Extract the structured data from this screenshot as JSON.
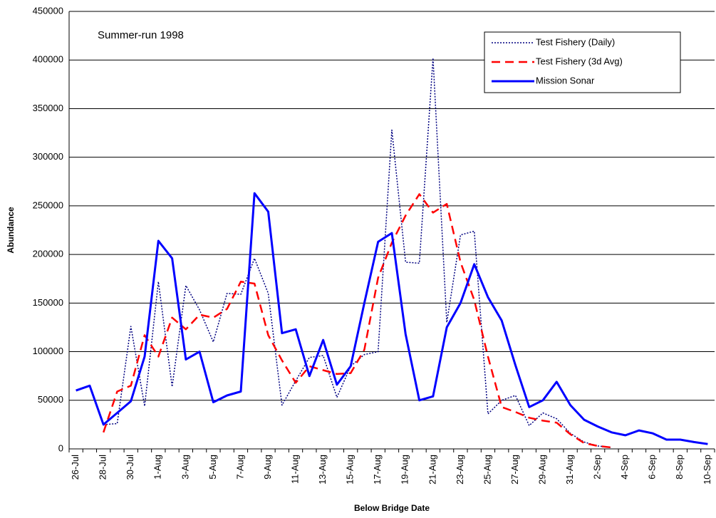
{
  "chart_data": {
    "type": "line",
    "annotation": "Summer-run 1998",
    "x_label": "Below Bridge Date",
    "y_label": "Abundance",
    "categories": [
      "26-Jul",
      null,
      "28-Jul",
      null,
      "30-Jul",
      null,
      "1-Aug",
      null,
      "3-Aug",
      null,
      "5-Aug",
      null,
      "7-Aug",
      null,
      "9-Aug",
      null,
      "11-Aug",
      null,
      "13-Aug",
      null,
      "15-Aug",
      null,
      "17-Aug",
      null,
      "19-Aug",
      null,
      "21-Aug",
      null,
      "23-Aug",
      null,
      "25-Aug",
      null,
      "27-Aug",
      null,
      "29-Aug",
      null,
      "31-Aug",
      null,
      "2-Sep",
      null,
      "4-Sep",
      null,
      "6-Sep",
      null,
      "8-Sep",
      null,
      "10-Sep"
    ],
    "series": [
      {
        "name": "Test Fishery (Daily)",
        "color": "#000080",
        "dash": "dotted",
        "values": [
          null,
          null,
          25000,
          26000,
          126000,
          44000,
          172000,
          64000,
          168000,
          143000,
          110000,
          160000,
          159000,
          196000,
          160000,
          45000,
          70000,
          94000,
          96000,
          53000,
          85000,
          97000,
          100000,
          328000,
          192000,
          191000,
          402000,
          130000,
          220000,
          224000,
          36000,
          50000,
          55000,
          24000,
          37000,
          31000,
          16000,
          7000,
          3000,
          1500,
          null,
          null,
          null,
          null,
          null,
          null,
          null
        ]
      },
      {
        "name": "Test Fishery (3d Avg)",
        "color": "#ff0000",
        "dash": "dashed",
        "values": [
          null,
          null,
          17000,
          59000,
          65000,
          117000,
          95000,
          135000,
          123000,
          138000,
          135000,
          144000,
          172000,
          170000,
          117000,
          91000,
          68000,
          85000,
          81000,
          77000,
          78000,
          102000,
          176000,
          212000,
          240000,
          262000,
          243000,
          252000,
          192000,
          153000,
          95000,
          43000,
          38000,
          32000,
          29000,
          27000,
          15000,
          6000,
          3000,
          1500,
          null,
          null,
          null,
          null,
          null,
          null,
          null
        ]
      },
      {
        "name": "Mission Sonar",
        "color": "#0000ff",
        "dash": "solid",
        "values": [
          60000,
          65000,
          25000,
          37000,
          49000,
          95000,
          214000,
          196000,
          92000,
          100000,
          48000,
          55000,
          59000,
          263000,
          244000,
          119000,
          123000,
          75000,
          112000,
          66000,
          85000,
          150000,
          213000,
          222000,
          118000,
          50000,
          54000,
          125000,
          150000,
          190000,
          156000,
          132000,
          86000,
          43000,
          50000,
          69000,
          45000,
          30000,
          23000,
          17000,
          14000,
          19000,
          16000,
          9500,
          9500,
          7000,
          5000
        ]
      }
    ],
    "ylim": [
      0,
      450000
    ],
    "yticks": [
      0,
      50000,
      100000,
      150000,
      200000,
      250000,
      300000,
      350000,
      400000,
      450000
    ],
    "grid": true,
    "legend": "top-right"
  }
}
